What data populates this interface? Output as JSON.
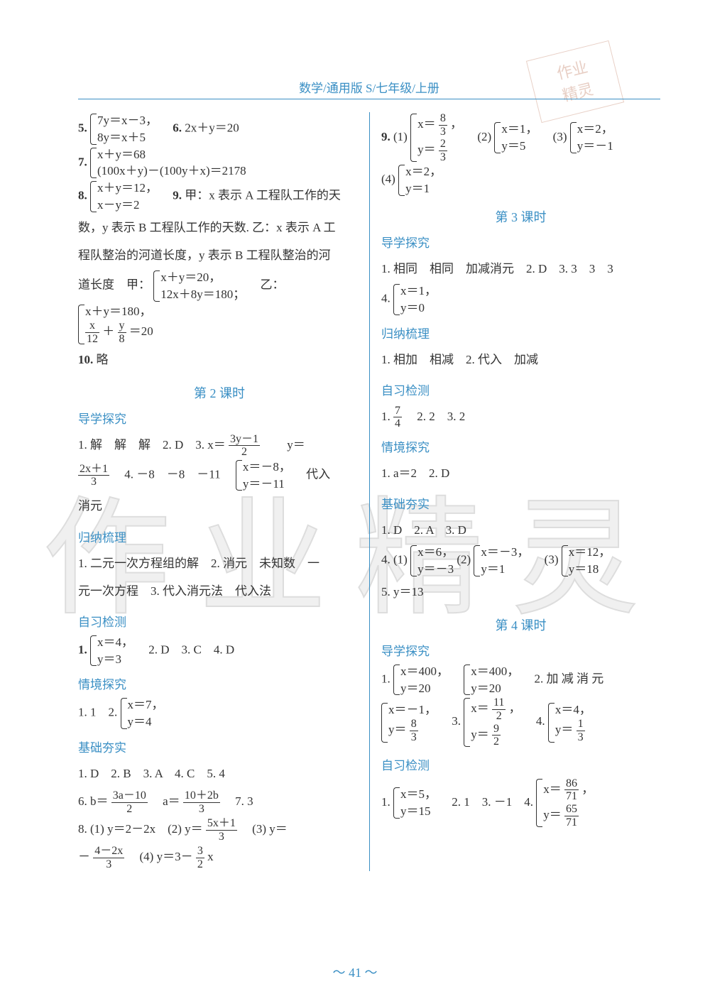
{
  "header": "数学/通用版 S/七年级/上册",
  "stamp": {
    "l1": "作业",
    "l2": "精灵"
  },
  "watermark": "作业精灵",
  "pagenum": "～ 41 ～",
  "left": {
    "q5": {
      "label": "5.",
      "sys": [
        "7y＝x－3，",
        "8y＝x＋5"
      ]
    },
    "q6": {
      "label": "6.",
      "text": "2x＋y＝20"
    },
    "q7": {
      "label": "7.",
      "sys": [
        "x＋y＝68",
        "(100x＋y)－(100y＋x)＝2178"
      ]
    },
    "q8": {
      "label": "8.",
      "sys": [
        "x＋y＝12，",
        "x－y＝2"
      ]
    },
    "q9": {
      "label": "9.",
      "pre": "甲：x 表示 A 工程队工作的天"
    },
    "q9b": "数，y 表示 B 工程队工作的天数. 乙：x 表示 A 工",
    "q9c": "程队整治的河道长度，y 表示 B 工程队整治的河",
    "q9d_pre": "道长度　甲：",
    "q9d_sysA": [
      "x＋y＝20，",
      "12x＋8y＝180；"
    ],
    "q9d_mid": "乙：",
    "q9d_sysB_r1": "x＋y＝180，",
    "q9d_sysB_r2_num1": "x",
    "q9d_sysB_r2_den1": "12",
    "q9d_sysB_r2_plus": "＋",
    "q9d_sysB_r2_num2": "y",
    "q9d_sysB_r2_den2": "8",
    "q9d_sysB_r2_tail": "＝20",
    "q10": {
      "label": "10.",
      "text": "略"
    },
    "lesson2": "第 2 课时",
    "dx": "导学探究",
    "l2_1a": "1. 解　解　解　2. D　3. ",
    "l2_1b_pre": "x＝",
    "l2_1b_num": "3y－1",
    "l2_1b_den": "2",
    "l2_1b_gap": "　　y＝",
    "l2_2_num": "2x＋1",
    "l2_2_den": "3",
    "l2_2b": "　4. －8　－8　－11　",
    "l2_2sys": [
      "x＝－8，",
      "y＝－11"
    ],
    "l2_2c": "　代入",
    "l2_3": "消元",
    "gn": "归纳梳理",
    "l2_g1": "1. 二元一次方程组的解　2. 消元　未知数　一",
    "l2_g2": "元一次方程　3. 代入消元法　代入法",
    "zx": "自习检测",
    "l2_z1_sys": [
      "x＝4，",
      "y＝3"
    ],
    "l2_z1_tail": "　2. D　3. C　4. D",
    "qj": "情境探究",
    "l2_q1": "1. 1　2. ",
    "l2_q1_sys": [
      "x＝7，",
      "y＝4"
    ],
    "jc": "基础夯实",
    "l2_j1": "1. D　2. B　3. A　4. C　5. 4",
    "l2_j6a": "6. b＝",
    "l2_j6a_num": "3a－10",
    "l2_j6a_den": "2",
    "l2_j6b": "　a＝",
    "l2_j6b_num": "10＋2b",
    "l2_j6b_den": "3",
    "l2_j6_tail": "　7. 3",
    "l2_j8a": "8. (1) y＝2－2x　(2) y＝",
    "l2_j8a_num": "5x＋1",
    "l2_j8a_den": "3",
    "l2_j8a_tail": "　(3) y＝",
    "l2_j8b_pre": "－",
    "l2_j8b_num": "4－2x",
    "l2_j8b_den": "3",
    "l2_j8c": "　(4) y＝3－",
    "l2_j8c_num": "3",
    "l2_j8c_den": "2",
    "l2_j8c_tail": "x"
  },
  "right": {
    "q9_lbl": "9.",
    "q9_1": "(1)",
    "q9_1sys_r1_pre": "x＝",
    "q9_1sys_r1_num": "8",
    "q9_1sys_r1_den": "3",
    "q9_1sys_r1_tail": "，",
    "q9_1sys_r2_pre": "y＝",
    "q9_1sys_r2_num": "2",
    "q9_1sys_r2_den": "3",
    "q9_2": "(2)",
    "q9_2sys": [
      "x＝1，",
      "y＝5"
    ],
    "q9_3": "(3)",
    "q9_3sys": [
      "x＝2，",
      "y＝－1"
    ],
    "q9_4": "(4)",
    "q9_4sys": [
      "x＝2，",
      "y＝1"
    ],
    "lesson3": "第 3 课时",
    "dx": "导学探究",
    "l3_1": "1. 相同　相同　加减消元　2. D　3. 3　3　3",
    "l3_4": "4. ",
    "l3_4sys": [
      "x＝1，",
      "y＝0"
    ],
    "gn": "归纳梳理",
    "l3_g1": "1. 相加　相减　2. 代入　加减",
    "zx": "自习检测",
    "l3_z1_pre": "1. ",
    "l3_z1_num": "7",
    "l3_z1_den": "4",
    "l3_z1_tail": "　2. 2　3. 2",
    "qj": "情境探究",
    "l3_q1": "1. a＝2　2. D",
    "jc": "基础夯实",
    "l3_j1": "1. D　2. A　3. D",
    "l3_j4": "4. (1)",
    "l3_j4a": [
      "x＝6，",
      "y＝－3"
    ],
    "l3_j4b_lbl": "(2)",
    "l3_j4b": [
      "x＝－3，",
      "y＝1"
    ],
    "l3_j4c_lbl": "(3)",
    "l3_j4c": [
      "x＝12，",
      "y＝18"
    ],
    "l3_j5": "5. y＝13",
    "lesson4": "第 4 课时",
    "l4_dx": "导学探究",
    "l4_1": "1. ",
    "l4_1a": [
      "x＝400，",
      "y＝20"
    ],
    "l4_1b": [
      "x＝400，",
      "y＝20"
    ],
    "l4_1_tail": "　2. 加 减 消 元",
    "l4_2a_r1": "x＝－1，",
    "l4_2a_r2_pre": "y＝",
    "l4_2a_r2_num": "8",
    "l4_2a_r2_den": "3",
    "l4_3": "3. ",
    "l4_3_r1_pre": "x＝",
    "l4_3_r1_num": "11",
    "l4_3_r1_den": "2",
    "l4_3_r1_tail": "，",
    "l4_3_r2_pre": "y＝",
    "l4_3_r2_num": "9",
    "l4_3_r2_den": "2",
    "l4_4": "4. ",
    "l4_4_r1": "x＝4，",
    "l4_4_r2_pre": "y＝",
    "l4_4_r2_num": "1",
    "l4_4_r2_den": "3",
    "l4_zx": "自习检测",
    "l4_z1": "1. ",
    "l4_z1sys": [
      "x＝5，",
      "y＝15"
    ],
    "l4_z1_tail": "　2. 1　3. －1　4. ",
    "l4_z4_r1_pre": "x＝",
    "l4_z4_r1_num": "86",
    "l4_z4_r1_den": "71",
    "l4_z4_r1_tail": "，",
    "l4_z4_r2_pre": "y＝",
    "l4_z4_r2_num": "65",
    "l4_z4_r2_den": "71"
  }
}
